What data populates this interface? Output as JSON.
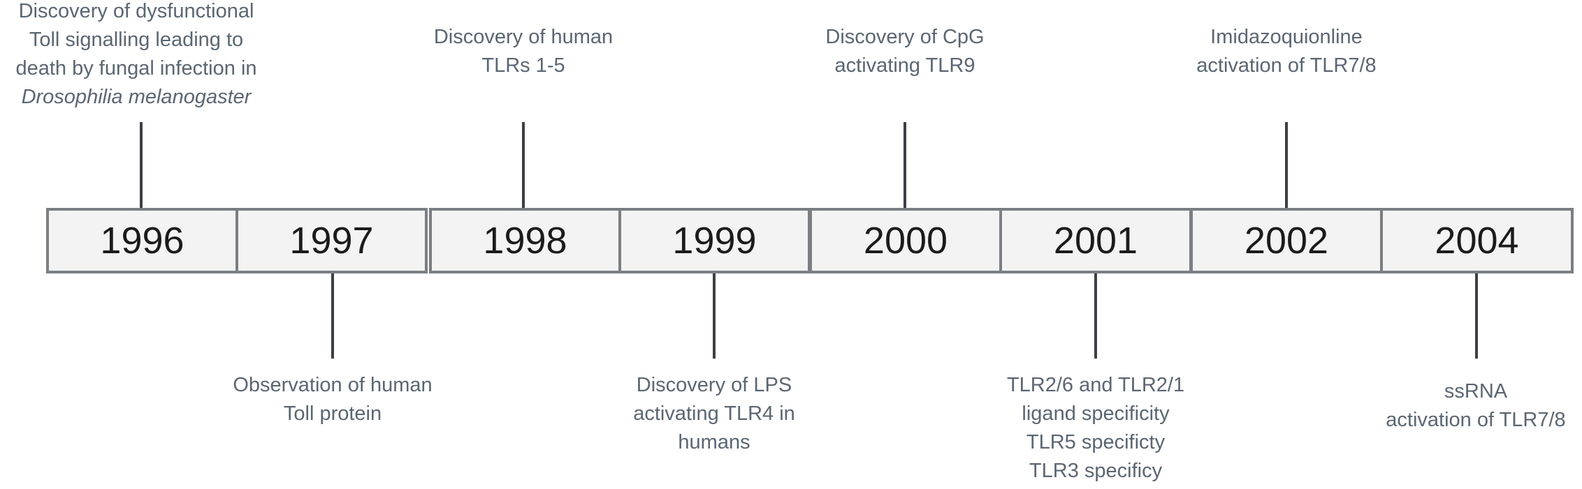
{
  "years": [
    "1996",
    "1997",
    "1998",
    "1999",
    "2000",
    "2001",
    "2002",
    "2004"
  ],
  "events": {
    "e1996": {
      "line1": "Discovery of dysfunctional",
      "line2": "Toll signalling leading to",
      "line3": "death by fungal infection in",
      "line4": "Drosophilia melanogaster"
    },
    "e1997": {
      "line1": "Observation of human",
      "line2": "Toll protein"
    },
    "e1998": {
      "line1": "Discovery of human",
      "line2": "TLRs 1-5"
    },
    "e1999": {
      "line1": "Discovery of LPS",
      "line2": "activating TLR4 in",
      "line3": "humans"
    },
    "e2000": {
      "line1": "Discovery of CpG",
      "line2": "activating TLR9"
    },
    "e2001": {
      "line1": "TLR2/6 and TLR2/1",
      "line2": "ligand specificity",
      "line3": "TLR5 specificty",
      "line4": "TLR3 specificy"
    },
    "e2002": {
      "line1": "Imidazoquionline",
      "line2": "activation of TLR7/8"
    },
    "e2004": {
      "line1": "ssRNA",
      "line2": "activation of TLR7/8"
    }
  }
}
